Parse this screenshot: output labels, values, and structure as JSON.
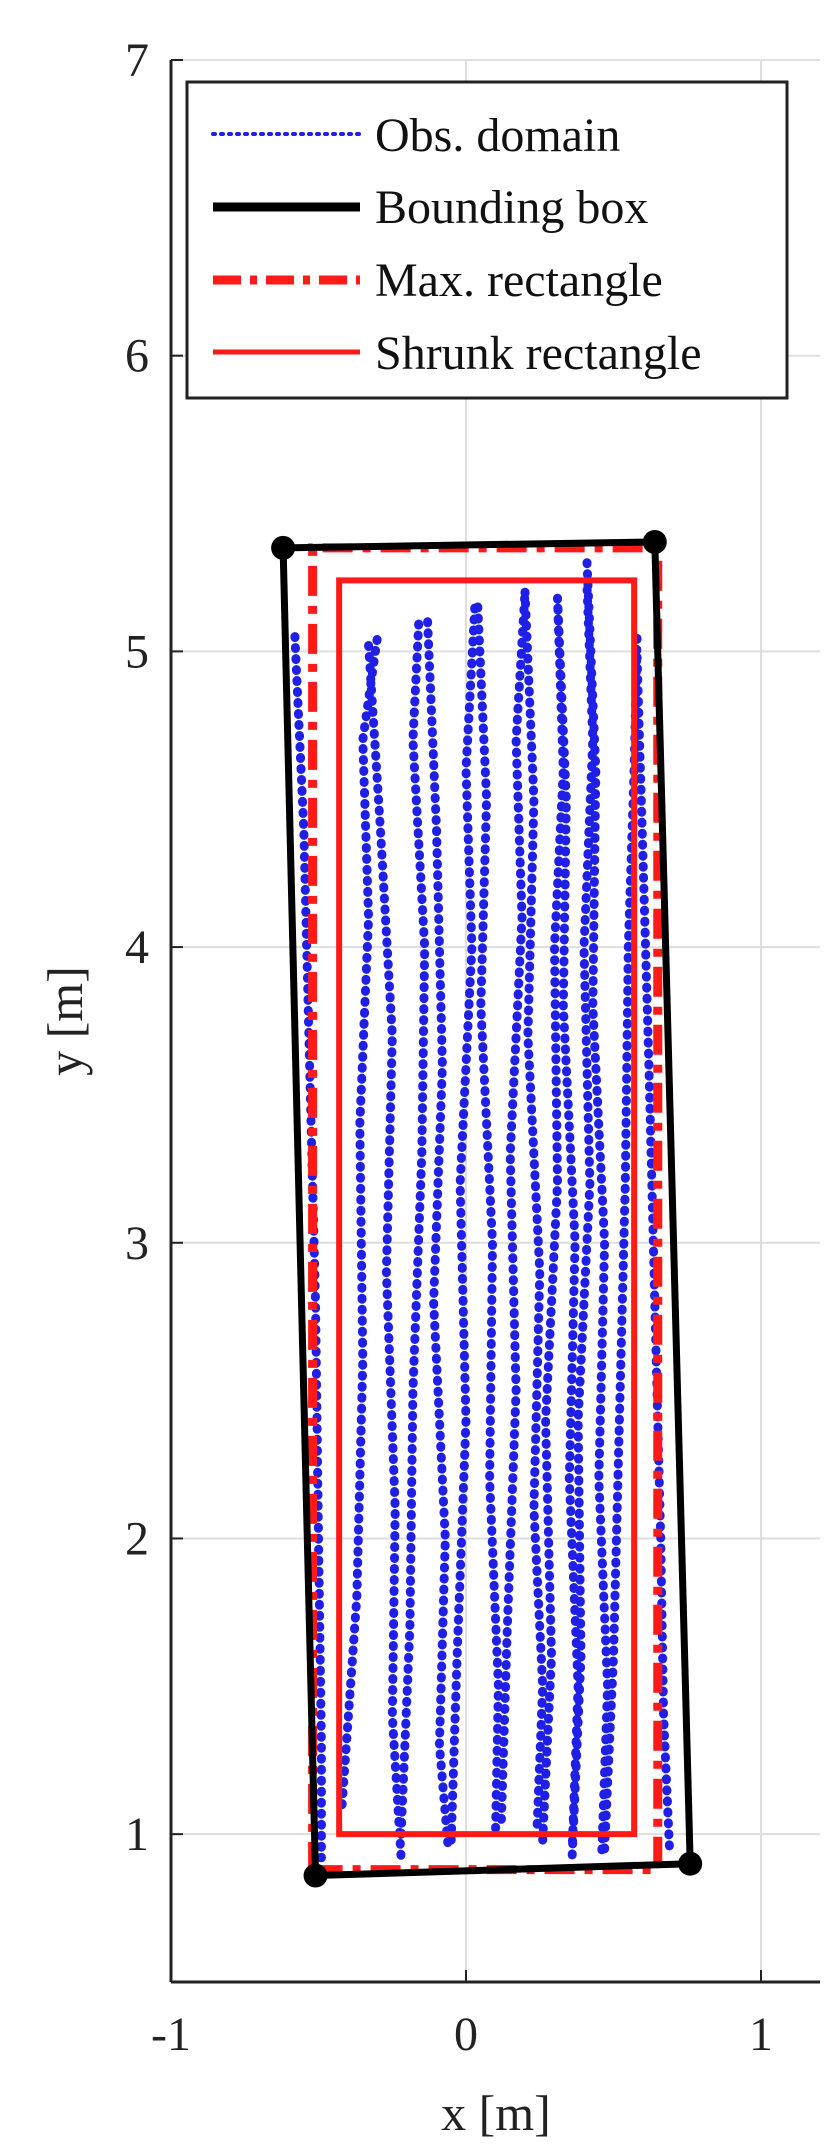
{
  "chart_data": {
    "type": "scatter",
    "xlabel": "x [m]",
    "ylabel": "y [m]",
    "xlim": [
      -1,
      1.2
    ],
    "ylim": [
      0.5,
      7
    ],
    "xticks": [
      "-1",
      "0",
      "1"
    ],
    "yticks": [
      "1",
      "2",
      "3",
      "4",
      "5",
      "6",
      "7"
    ],
    "grid": true,
    "legend_position": "top",
    "legend": [
      {
        "label": "Obs. domain",
        "style": "dotted",
        "color": "#1f1fe6"
      },
      {
        "label": "Bounding box",
        "style": "solid-thick",
        "color": "#000000"
      },
      {
        "label": "Max. rectangle",
        "style": "dashdot",
        "color": "#ff1a1a"
      },
      {
        "label": "Shrunk rectangle",
        "style": "solid",
        "color": "#ff1a1a"
      }
    ],
    "series": [
      {
        "name": "Bounding box",
        "color": "#000000",
        "closed": true,
        "points": [
          [
            -0.62,
            5.35
          ],
          [
            0.64,
            5.37
          ],
          [
            0.76,
            0.9
          ],
          [
            -0.51,
            0.86
          ]
        ]
      },
      {
        "name": "Max. rectangle",
        "color": "#ff1a1a",
        "points": [
          [
            -0.52,
            0.88
          ],
          [
            0.65,
            0.88
          ],
          [
            0.65,
            5.35
          ],
          [
            -0.52,
            5.35
          ]
        ]
      },
      {
        "name": "Shrunk rectangle",
        "color": "#ff1a1a",
        "points": [
          [
            -0.43,
            1.0
          ],
          [
            0.57,
            1.0
          ],
          [
            0.57,
            5.24
          ],
          [
            -0.43,
            5.24
          ]
        ]
      },
      {
        "name": "Obs. domain",
        "color": "#1f1fe6",
        "tracks": [
          {
            "x": [
              -0.58,
              -0.55,
              -0.53,
              -0.51,
              -0.5,
              -0.49,
              -0.49
            ],
            "y": [
              5.05,
              4.4,
              3.6,
              2.8,
              2.0,
              1.3,
              0.92
            ]
          },
          {
            "x": [
              -0.42,
              -0.37,
              -0.35,
              -0.36,
              -0.33,
              -0.35,
              -0.3
            ],
            "y": [
              1.1,
              1.8,
              2.6,
              3.4,
              4.1,
              4.7,
              5.05
            ]
          },
          {
            "x": [
              -0.33,
              -0.29,
              -0.25,
              -0.27,
              -0.24,
              -0.25,
              -0.22
            ],
            "y": [
              5.02,
              4.4,
              3.7,
              2.9,
              2.1,
              1.4,
              0.92
            ]
          },
          {
            "x": [
              -0.22,
              -0.19,
              -0.18,
              -0.15,
              -0.14,
              -0.18,
              -0.16
            ],
            "y": [
              1.0,
              1.7,
              2.5,
              3.3,
              4.0,
              4.7,
              5.1
            ]
          },
          {
            "x": [
              -0.13,
              -0.1,
              -0.08,
              -0.11,
              -0.07,
              -0.09,
              -0.06
            ],
            "y": [
              5.1,
              4.4,
              3.6,
              2.8,
              2.0,
              1.3,
              0.95
            ]
          },
          {
            "x": [
              -0.05,
              -0.03,
              0.0,
              -0.02,
              0.02,
              0.0,
              0.03
            ],
            "y": [
              0.98,
              1.6,
              2.4,
              3.2,
              4.0,
              4.6,
              5.15
            ]
          },
          {
            "x": [
              0.04,
              0.07,
              0.05,
              0.09,
              0.08,
              0.11,
              0.1
            ],
            "y": [
              5.15,
              4.5,
              3.8,
              3.0,
              2.2,
              1.5,
              1.0
            ]
          },
          {
            "x": [
              0.12,
              0.14,
              0.17,
              0.15,
              0.19,
              0.17,
              0.2
            ],
            "y": [
              1.05,
              1.7,
              2.5,
              3.3,
              4.1,
              4.7,
              5.2
            ]
          },
          {
            "x": [
              0.2,
              0.23,
              0.21,
              0.25,
              0.23,
              0.26,
              0.24
            ],
            "y": [
              5.2,
              4.5,
              3.7,
              2.9,
              2.1,
              1.5,
              1.0
            ]
          },
          {
            "x": [
              0.26,
              0.29,
              0.27,
              0.31,
              0.3,
              0.33,
              0.31
            ],
            "y": [
              0.98,
              1.6,
              2.4,
              3.2,
              4.0,
              4.6,
              5.18
            ]
          },
          {
            "x": [
              0.31,
              0.34,
              0.33,
              0.37,
              0.35,
              0.38,
              0.36
            ],
            "y": [
              5.18,
              4.5,
              3.8,
              3.0,
              2.2,
              1.5,
              0.95
            ]
          },
          {
            "x": [
              0.36,
              0.39,
              0.38,
              0.42,
              0.4,
              0.43,
              0.41
            ],
            "y": [
              0.93,
              1.6,
              2.4,
              3.2,
              4.0,
              4.7,
              5.22
            ]
          },
          {
            "x": [
              0.41,
              0.44,
              0.43,
              0.47,
              0.45,
              0.48,
              0.46
            ],
            "y": [
              5.3,
              4.6,
              3.8,
              3.0,
              2.2,
              1.5,
              0.93
            ]
          },
          {
            "x": [
              0.47,
              0.5,
              0.52,
              0.54,
              0.55,
              0.57,
              0.58
            ],
            "y": [
              0.95,
              1.6,
              2.4,
              3.2,
              4.0,
              4.6,
              5.05
            ]
          },
          {
            "x": [
              0.58,
              0.6,
              0.62,
              0.64,
              0.66,
              0.67,
              0.69
            ],
            "y": [
              4.98,
              4.3,
              3.6,
              2.8,
              2.0,
              1.4,
              0.95
            ]
          }
        ]
      }
    ],
    "markers": [
      [
        -0.62,
        5.35
      ],
      [
        0.64,
        5.37
      ],
      [
        0.76,
        0.9
      ],
      [
        -0.51,
        0.86
      ]
    ]
  }
}
